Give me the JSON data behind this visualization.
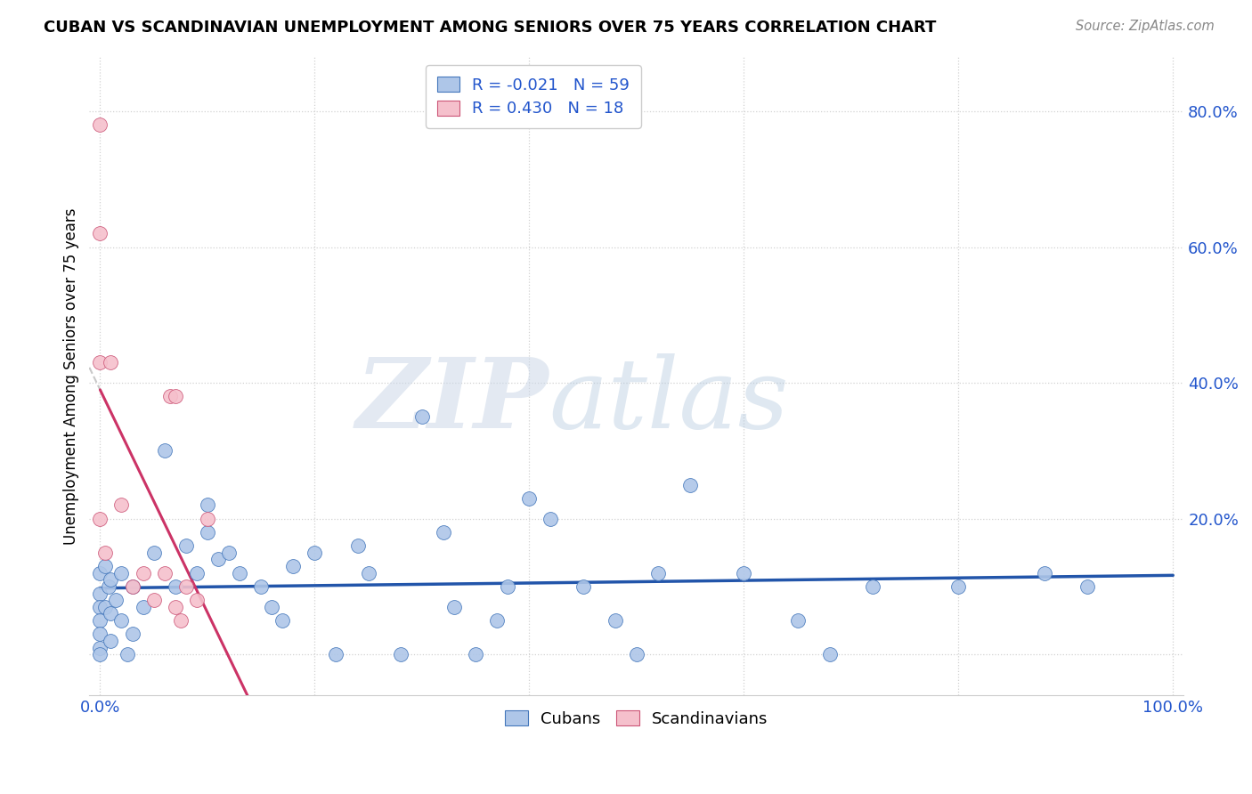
{
  "title": "CUBAN VS SCANDINAVIAN UNEMPLOYMENT AMONG SENIORS OVER 75 YEARS CORRELATION CHART",
  "source": "Source: ZipAtlas.com",
  "ylabel": "Unemployment Among Seniors over 75 years",
  "xlim": [
    -0.01,
    1.01
  ],
  "ylim": [
    -0.06,
    0.88
  ],
  "cubans_R": -0.021,
  "cubans_N": 59,
  "scandinavians_R": 0.43,
  "scandinavians_N": 18,
  "cubans_color": "#aec6e8",
  "cubans_edge_color": "#4477bb",
  "scandinavians_color": "#f5c0cc",
  "scandinavians_edge_color": "#cc5577",
  "cubans_line_color": "#2255aa",
  "scandinavians_line_color": "#cc3366",
  "cubans_x": [
    0.0,
    0.0,
    0.0,
    0.0,
    0.0,
    0.0,
    0.0,
    0.005,
    0.005,
    0.008,
    0.01,
    0.01,
    0.01,
    0.015,
    0.02,
    0.02,
    0.025,
    0.03,
    0.03,
    0.04,
    0.05,
    0.06,
    0.07,
    0.08,
    0.09,
    0.1,
    0.1,
    0.11,
    0.12,
    0.13,
    0.15,
    0.16,
    0.17,
    0.18,
    0.2,
    0.22,
    0.24,
    0.25,
    0.28,
    0.3,
    0.32,
    0.33,
    0.35,
    0.37,
    0.38,
    0.4,
    0.42,
    0.45,
    0.48,
    0.5,
    0.52,
    0.55,
    0.6,
    0.65,
    0.68,
    0.72,
    0.8,
    0.88,
    0.92
  ],
  "cubans_y": [
    0.12,
    0.09,
    0.07,
    0.05,
    0.03,
    0.01,
    0.0,
    0.13,
    0.07,
    0.1,
    0.11,
    0.06,
    0.02,
    0.08,
    0.12,
    0.05,
    0.0,
    0.1,
    0.03,
    0.07,
    0.15,
    0.3,
    0.1,
    0.16,
    0.12,
    0.22,
    0.18,
    0.14,
    0.15,
    0.12,
    0.1,
    0.07,
    0.05,
    0.13,
    0.15,
    0.0,
    0.16,
    0.12,
    0.0,
    0.35,
    0.18,
    0.07,
    0.0,
    0.05,
    0.1,
    0.23,
    0.2,
    0.1,
    0.05,
    0.0,
    0.12,
    0.25,
    0.12,
    0.05,
    0.0,
    0.1,
    0.1,
    0.12,
    0.1
  ],
  "scandinavians_x": [
    0.0,
    0.0,
    0.0,
    0.0,
    0.005,
    0.01,
    0.02,
    0.03,
    0.04,
    0.05,
    0.06,
    0.065,
    0.07,
    0.07,
    0.075,
    0.08,
    0.09,
    0.1
  ],
  "scandinavians_y": [
    0.78,
    0.62,
    0.43,
    0.2,
    0.15,
    0.43,
    0.22,
    0.1,
    0.12,
    0.08,
    0.12,
    0.38,
    0.38,
    0.07,
    0.05,
    0.1,
    0.08,
    0.2
  ]
}
